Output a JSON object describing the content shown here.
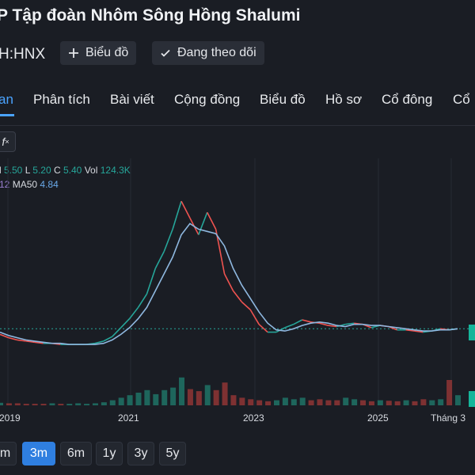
{
  "header": {
    "title": "P Tập đoàn Nhôm Sông Hồng Shalumi",
    "ticker": "H:HNX",
    "chart_button": "Biểu đồ",
    "follow_button": "Đang theo dõi"
  },
  "tabs": [
    {
      "label": "an",
      "active": true
    },
    {
      "label": "Phân tích",
      "active": false
    },
    {
      "label": "Bài viết",
      "active": false
    },
    {
      "label": "Cộng đồng",
      "active": false
    },
    {
      "label": "Biểu đồ",
      "active": false
    },
    {
      "label": "Hồ sơ",
      "active": false
    },
    {
      "label": "Cổ đông",
      "active": false
    },
    {
      "label": "Cổ",
      "active": false
    }
  ],
  "toolbar": {
    "fx_label": "f"
  },
  "ohlc": {
    "h_val": "5.50",
    "l_lbl": "L",
    "l_val": "5.20",
    "c_lbl": "C",
    "c_val": "5.40",
    "vol_lbl": "Vol",
    "vol_val": "124.3K"
  },
  "ma": {
    "ma20_frag": "12",
    "ma50_lbl": "MA50",
    "ma50_val": "4.84"
  },
  "x_axis_labels": [
    "2019",
    "2021",
    "2023",
    "2025",
    "Tháng 3"
  ],
  "ranges": [
    {
      "label": "m",
      "active": false
    },
    {
      "label": "3m",
      "active": true
    },
    {
      "label": "6m",
      "active": false
    },
    {
      "label": "1y",
      "active": false
    },
    {
      "label": "3y",
      "active": false
    },
    {
      "label": "5y",
      "active": false
    }
  ],
  "colors": {
    "accent": "#4aa3ff",
    "up": "#26a69a",
    "down": "#ef5350",
    "ma_line": "#8fb8e0",
    "background": "#1a1d24"
  },
  "chart_data": {
    "type": "line",
    "x_ticks": [
      "2019",
      "2021",
      "2023",
      "2025",
      "Tháng 3"
    ],
    "series": [
      {
        "values": [
          3.6,
          3.3,
          3.1,
          3.0,
          2.9,
          2.8,
          2.8,
          2.7,
          2.7,
          2.7,
          2.7,
          2.8,
          3.0,
          3.4,
          4.2,
          5.0,
          6.0,
          7.2,
          9.5,
          11.0,
          13.0,
          15.5,
          14.0,
          12.5,
          14.5,
          13.0,
          9.0,
          7.5,
          6.5,
          5.8,
          4.5,
          3.8,
          3.8,
          4.2,
          4.5,
          4.9,
          4.7,
          4.6,
          4.4,
          4.3,
          4.5,
          4.6,
          4.5,
          4.2,
          4.4,
          4.3,
          4.0,
          4.0,
          3.9,
          3.8,
          3.9,
          4.1,
          4.0,
          4.1
        ]
      },
      {
        "values": [
          3.8,
          3.5,
          3.3,
          3.1,
          3.0,
          2.9,
          2.8,
          2.8,
          2.7,
          2.7,
          2.7,
          2.7,
          2.8,
          3.1,
          3.6,
          4.2,
          5.0,
          6.0,
          7.5,
          9.0,
          10.5,
          12.5,
          13.5,
          13.0,
          12.8,
          12.6,
          11.5,
          9.5,
          8.0,
          6.8,
          5.6,
          4.6,
          4.0,
          3.9,
          4.1,
          4.4,
          4.6,
          4.7,
          4.6,
          4.4,
          4.3,
          4.5,
          4.5,
          4.4,
          4.4,
          4.3,
          4.2,
          4.1,
          4.0,
          3.9,
          3.9,
          4.0,
          4.0,
          4.1
        ]
      }
    ],
    "volume": [
      0.05,
      0.04,
      0.04,
      0.03,
      0.03,
      0.03,
      0.04,
      0.03,
      0.03,
      0.04,
      0.03,
      0.04,
      0.06,
      0.1,
      0.15,
      0.2,
      0.25,
      0.3,
      0.22,
      0.3,
      0.35,
      0.55,
      0.32,
      0.28,
      0.4,
      0.3,
      0.45,
      0.2,
      0.15,
      0.12,
      0.1,
      0.08,
      0.1,
      0.15,
      0.12,
      0.15,
      0.1,
      0.12,
      0.1,
      0.1,
      0.15,
      0.12,
      0.1,
      0.08,
      0.1,
      0.09,
      0.08,
      0.1,
      0.08,
      0.12,
      0.1,
      0.12,
      0.5,
      0.2
    ],
    "reference_price": 4.1
  }
}
